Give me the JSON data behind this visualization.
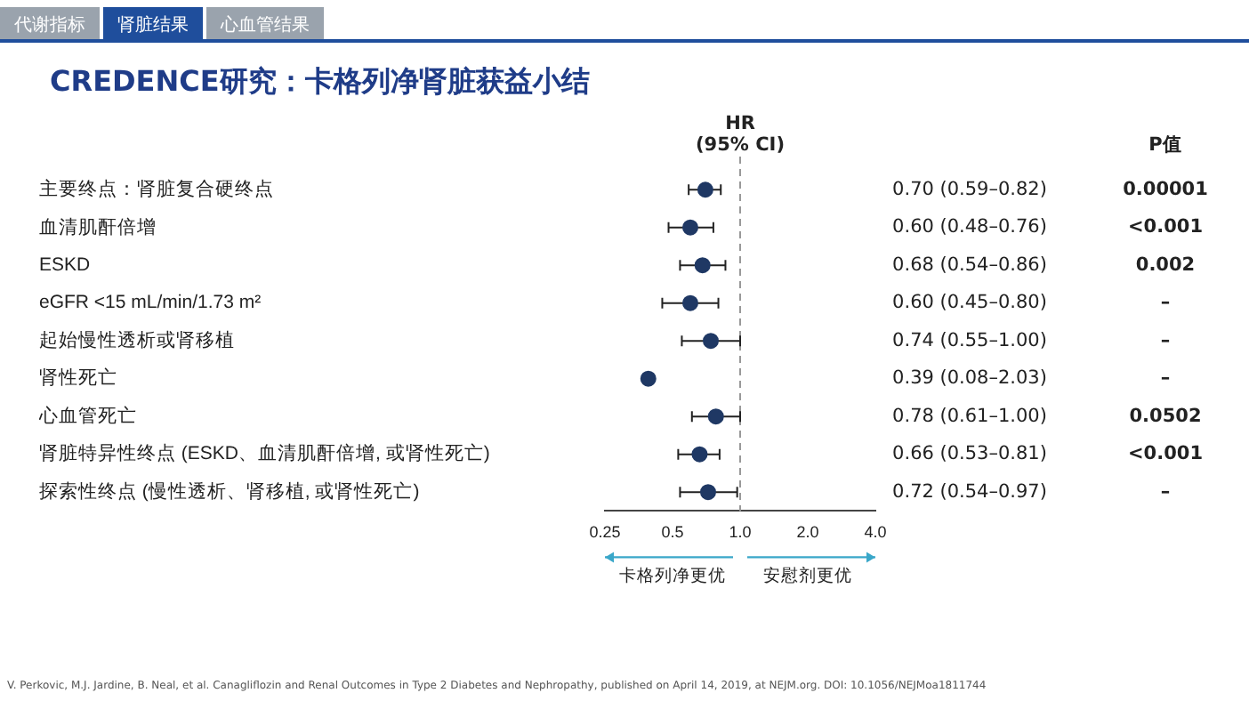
{
  "chart_data": {
    "type": "scatter",
    "orientation": "horizontal",
    "title": "CREDENCE研究：卡格列净肾脏获益小结",
    "categories": [
      "主要终点：肾脏复合硬终点",
      "血清肌酐倍增",
      "ESKD",
      "eGFR <15 mL/min/1.73 m²",
      "起始慢性透析或肾移植",
      "肾性死亡",
      "心血管死亡",
      "肾脏特异性终点 (ESKD、血清肌酐倍增, 或肾性死亡)",
      "探索性终点 (慢性透析、肾移植, 或肾性死亡)"
    ],
    "values": [
      0.7,
      0.6,
      0.68,
      0.6,
      0.74,
      0.39,
      0.78,
      0.66,
      0.72
    ],
    "errors": [
      [
        0.59,
        0.82
      ],
      [
        0.48,
        0.76
      ],
      [
        0.54,
        0.86
      ],
      [
        0.45,
        0.8
      ],
      [
        0.55,
        1.0
      ],
      null,
      [
        0.61,
        1.0
      ],
      [
        0.53,
        0.81
      ],
      [
        0.54,
        0.97
      ]
    ],
    "value_labels": [
      "0.70 (0.59–0.82)",
      "0.60 (0.48–0.76)",
      "0.68 (0.54–0.86)",
      "0.60 (0.45–0.80)",
      "0.74 (0.55–1.00)",
      "0.39 (0.08–2.03)",
      "0.78 (0.61–1.00)",
      "0.66 (0.53–0.81)",
      "0.72 (0.54–0.97)"
    ],
    "color": "#1f3864",
    "marker": "circle",
    "log": "x",
    "grid": false,
    "legend": false,
    "xlim": [
      0.25,
      4
    ],
    "xticks": [
      0.25,
      0.5,
      {
        "value": 1,
        "label": "1.0"
      },
      {
        "value": 2,
        "label": "2.0"
      },
      {
        "value": 4,
        "label": "4.0"
      }
    ],
    "ref_lines": [
      {
        "axis": "x",
        "value": 1,
        "color": "#999999",
        "line_style": "dashed"
      }
    ],
    "annotations": [
      "HR (95% CI)",
      "P值",
      "0.00001",
      "<0.001",
      "0.002",
      "–",
      "–",
      "–",
      "0.0502",
      "<0.001",
      "–",
      "卡格列净更优",
      "安慰剂更优",
      "代谢指标",
      "肾脏结果",
      "心血管结果",
      "V. Perkovic, M.J. Jardine, B. Neal, et al. Canagliflozin and Renal Outcomes in Type 2 Diabetes and Nephropathy, published on April 14, 2019, at NEJM.org. DOI: 10.1056/NEJMoa1811744"
    ]
  }
}
